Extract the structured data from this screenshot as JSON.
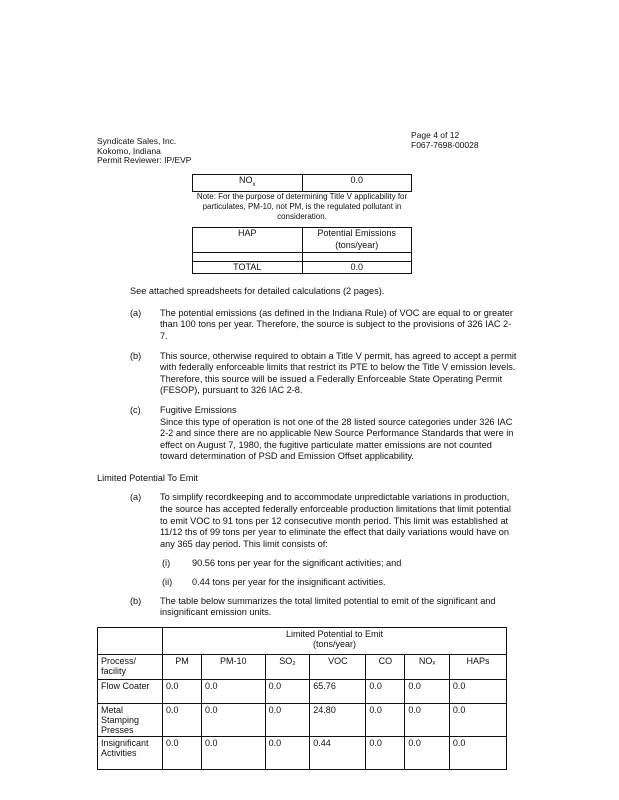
{
  "header": {
    "company": "Syndicate Sales, Inc.",
    "location": "Kokomo, Indiana",
    "reviewer": "Permit Reviewer: IP/EVP",
    "page": "Page 4 of 12",
    "permit_no": "F067-7698-00028"
  },
  "nox_table": {
    "pollutant": "NO",
    "sub": "x",
    "value": "0.0"
  },
  "note": "Note: For the purpose of determining Title V applicability for particulates, PM-10, not PM, is the regulated pollutant in consideration.",
  "hap_table": {
    "col1": "HAP",
    "col2": "Potential Emissions (tons/year)",
    "total_label": "TOTAL",
    "total_value": "0.0"
  },
  "see_attached": "See attached spreadsheets for detailed calculations (2 pages).",
  "items": [
    {
      "label": "(a)",
      "text": "The potential emissions (as defined in the Indiana Rule) of VOC are equal to or greater than 100 tons per year.  Therefore, the source is subject to the provisions of 326 IAC 2-7."
    },
    {
      "label": "(b)",
      "text": "This source, otherwise required to obtain a Title V permit, has agreed to accept a permit with federally enforceable limits that restrict its PTE to below the Title V emission levels. Therefore, this source will be issued a Federally Enforceable State Operating Permit (FESOP), pursuant to 326 IAC 2-8."
    },
    {
      "label": "(c)",
      "title": "Fugitive Emissions",
      "text": "Since this type of operation is not one of the 28 listed source categories under 326 IAC 2-2 and since there are no applicable New Source Performance Standards that were in effect on August 7, 1980, the fugitive particulate matter emissions are not counted toward determination of PSD and Emission Offset applicability."
    }
  ],
  "limited": {
    "heading": "Limited Potential To Emit",
    "a_label": "(a)",
    "a_text": "To simplify recordkeeping and to accommodate unpredictable variations in production, the source has accepted federally enforceable production limitations that limit potential to emit VOC to 91 tons per 12 consecutive month period.  This limit was established at 11/12 ths of 99 tons per year to eliminate the effect that daily variations would have on any 365 day period.  This limit consists of:",
    "sub": [
      {
        "label": "(i)",
        "text": "90.56 tons per year for the significant activities; and"
      },
      {
        "label": "(ii)",
        "text": "0.44 tons per year for the insignificant activities."
      }
    ],
    "b_label": "(b)",
    "b_text": "The table below summarizes the total limited potential to emit of the significant and insignificant emission units."
  },
  "pte_table": {
    "title": "Limited Potential to Emit",
    "units": "(tons/year)",
    "row_header": "Process/ facility",
    "columns": [
      "PM",
      "PM-10",
      "SO₂",
      "VOC",
      "CO",
      "NOₓ",
      "HAPs"
    ],
    "rows": [
      {
        "name": "Flow Coater",
        "values": [
          "0.0",
          "0.0",
          "0.0",
          "65.76",
          "0.0",
          "0.0",
          "0.0"
        ]
      },
      {
        "name": "Metal Stamping Presses",
        "values": [
          "0.0",
          "0.0",
          "0.0",
          "24.80",
          "0.0",
          "0.0",
          "0.0"
        ]
      },
      {
        "name": "Insignificant Activities",
        "values": [
          "0.0",
          "0.0",
          "0.0",
          "0.44",
          "0.0",
          "0.0",
          "0.0"
        ]
      }
    ]
  }
}
